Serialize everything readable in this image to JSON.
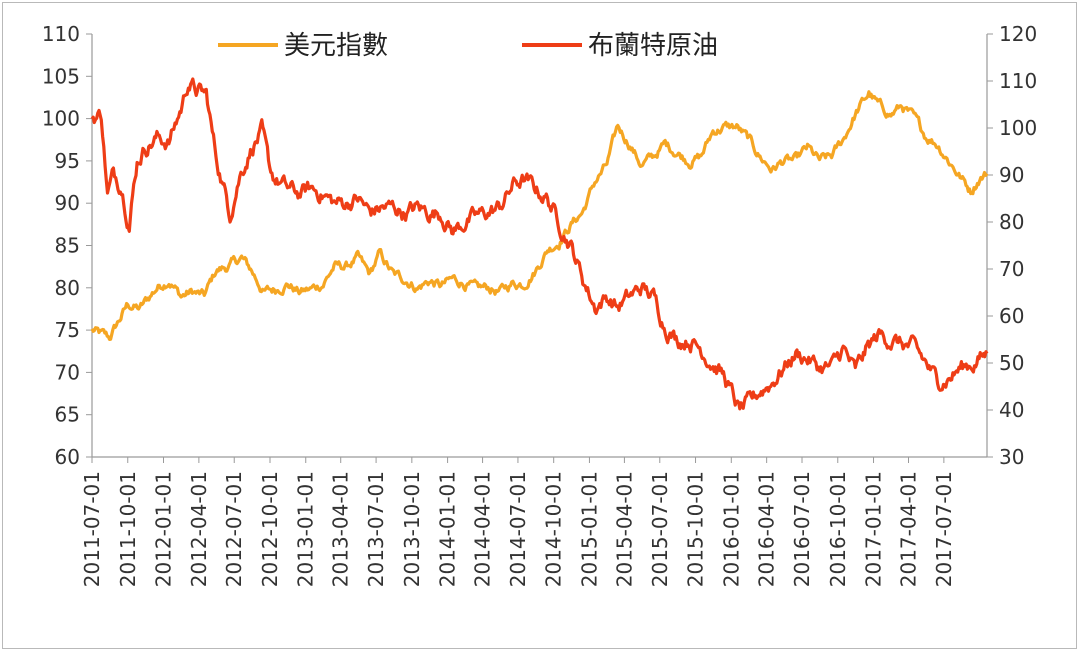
{
  "chart_data": {
    "type": "line",
    "title": "",
    "legend_position": "top",
    "grid": false,
    "x_tick_labels": [
      "2011-07-01",
      "2011-10-01",
      "2012-01-01",
      "2012-04-01",
      "2012-07-01",
      "2012-10-01",
      "2013-01-01",
      "2013-04-01",
      "2013-07-01",
      "2013-10-01",
      "2014-01-01",
      "2014-04-01",
      "2014-07-01",
      "2014-10-01",
      "2015-01-01",
      "2015-04-01",
      "2015-07-01",
      "2015-10-01",
      "2016-01-01",
      "2016-04-01",
      "2016-07-01",
      "2016-10-01",
      "2017-01-01",
      "2017-04-01",
      "2017-07-01"
    ],
    "x_range": [
      "2011-07-01",
      "2017-10-20"
    ],
    "y_left": {
      "min": 60,
      "max": 110,
      "step": 5,
      "ticks": [
        "60",
        "65",
        "70",
        "75",
        "80",
        "85",
        "90",
        "95",
        "100",
        "105",
        "110"
      ]
    },
    "y_right": {
      "min": 30,
      "max": 120,
      "step": 10,
      "ticks": [
        "30",
        "40",
        "50",
        "60",
        "70",
        "80",
        "90",
        "100",
        "110",
        "120"
      ]
    },
    "series": [
      {
        "name": "美元指數",
        "axis": "left",
        "color": "#f5a623",
        "points": [
          [
            "2011-07-01",
            75
          ],
          [
            "2011-08-15",
            74
          ],
          [
            "2011-10-01",
            78
          ],
          [
            "2011-11-01",
            77.5
          ],
          [
            "2011-12-15",
            80
          ],
          [
            "2012-01-15",
            81
          ],
          [
            "2012-02-15",
            79
          ],
          [
            "2012-03-15",
            79.5
          ],
          [
            "2012-04-15",
            79
          ],
          [
            "2012-05-15",
            82
          ],
          [
            "2012-06-15",
            82.5
          ],
          [
            "2012-07-20",
            83.5
          ],
          [
            "2012-08-15",
            82
          ],
          [
            "2012-09-15",
            79.5
          ],
          [
            "2012-10-15",
            79.8
          ],
          [
            "2012-11-15",
            80.5
          ],
          [
            "2012-12-15",
            79.5
          ],
          [
            "2013-01-15",
            79.8
          ],
          [
            "2013-02-15",
            80.5
          ],
          [
            "2013-03-15",
            82.5
          ],
          [
            "2013-04-15",
            82.5
          ],
          [
            "2013-05-15",
            83.5
          ],
          [
            "2013-06-15",
            81.5
          ],
          [
            "2013-07-10",
            84
          ],
          [
            "2013-08-15",
            81.5
          ],
          [
            "2013-09-15",
            81
          ],
          [
            "2013-10-15",
            80
          ],
          [
            "2013-11-15",
            80.8
          ],
          [
            "2013-12-15",
            80.2
          ],
          [
            "2014-01-15",
            81
          ],
          [
            "2014-02-15",
            80.5
          ],
          [
            "2014-03-15",
            79.8
          ],
          [
            "2014-04-15",
            80
          ],
          [
            "2014-05-15",
            79.5
          ],
          [
            "2014-06-15",
            80.5
          ],
          [
            "2014-07-15",
            80.5
          ],
          [
            "2014-08-15",
            82
          ],
          [
            "2014-09-15",
            84.5
          ],
          [
            "2014-10-15",
            85.5
          ],
          [
            "2014-11-15",
            87.5
          ],
          [
            "2014-12-15",
            89
          ],
          [
            "2015-01-15",
            92.5
          ],
          [
            "2015-02-15",
            94.5
          ],
          [
            "2015-03-15",
            99
          ],
          [
            "2015-04-15",
            97
          ],
          [
            "2015-05-15",
            94.5
          ],
          [
            "2015-06-15",
            95.5
          ],
          [
            "2015-07-15",
            97
          ],
          [
            "2015-08-15",
            96
          ],
          [
            "2015-09-15",
            95
          ],
          [
            "2015-10-15",
            95.5
          ],
          [
            "2015-11-15",
            98.5
          ],
          [
            "2015-12-15",
            99
          ],
          [
            "2016-01-15",
            99
          ],
          [
            "2016-02-15",
            97.5
          ],
          [
            "2016-03-15",
            95.5
          ],
          [
            "2016-04-15",
            94
          ],
          [
            "2016-05-15",
            95
          ],
          [
            "2016-06-15",
            95
          ],
          [
            "2016-07-15",
            96.5
          ],
          [
            "2016-08-15",
            95
          ],
          [
            "2016-09-15",
            95.5
          ],
          [
            "2016-10-15",
            97.5
          ],
          [
            "2016-11-15",
            100.5
          ],
          [
            "2016-12-20",
            103
          ],
          [
            "2017-01-15",
            101.5
          ],
          [
            "2017-02-15",
            100.5
          ],
          [
            "2017-03-15",
            101.5
          ],
          [
            "2017-04-15",
            100
          ],
          [
            "2017-05-15",
            98
          ],
          [
            "2017-06-15",
            97
          ],
          [
            "2017-07-15",
            95
          ],
          [
            "2017-08-15",
            93
          ],
          [
            "2017-09-08",
            91.5
          ],
          [
            "2017-10-01",
            93
          ],
          [
            "2017-10-20",
            93.5
          ]
        ]
      },
      {
        "name": "布蘭特原油",
        "axis": "right",
        "color": "#ee3d16",
        "points": [
          [
            "2011-07-01",
            102
          ],
          [
            "2011-07-25",
            103
          ],
          [
            "2011-08-10",
            86
          ],
          [
            "2011-08-25",
            90
          ],
          [
            "2011-09-15",
            88
          ],
          [
            "2011-10-05",
            80
          ],
          [
            "2011-10-25",
            93
          ],
          [
            "2011-11-15",
            96
          ],
          [
            "2011-12-15",
            98
          ],
          [
            "2012-01-15",
            97
          ],
          [
            "2012-02-15",
            104
          ],
          [
            "2012-03-05",
            110
          ],
          [
            "2012-03-25",
            108
          ],
          [
            "2012-04-20",
            107
          ],
          [
            "2012-05-15",
            94
          ],
          [
            "2012-06-20",
            82
          ],
          [
            "2012-07-15",
            90
          ],
          [
            "2012-08-15",
            96
          ],
          [
            "2012-09-10",
            99
          ],
          [
            "2012-09-30",
            91
          ],
          [
            "2012-10-15",
            89
          ],
          [
            "2012-11-15",
            87
          ],
          [
            "2012-12-15",
            86
          ],
          [
            "2013-01-15",
            87
          ],
          [
            "2013-02-15",
            86
          ],
          [
            "2013-03-15",
            84
          ],
          [
            "2013-04-15",
            84
          ],
          [
            "2013-05-15",
            85
          ],
          [
            "2013-06-15",
            82
          ],
          [
            "2013-07-15",
            83
          ],
          [
            "2013-08-15",
            83
          ],
          [
            "2013-09-15",
            82
          ],
          [
            "2013-10-15",
            83
          ],
          [
            "2013-11-15",
            82
          ],
          [
            "2013-12-15",
            82
          ],
          [
            "2014-01-15",
            78
          ],
          [
            "2014-02-15",
            80
          ],
          [
            "2014-03-15",
            81
          ],
          [
            "2014-04-15",
            82
          ],
          [
            "2014-05-15",
            83
          ],
          [
            "2014-06-20",
            88
          ],
          [
            "2014-07-15",
            89
          ],
          [
            "2014-08-15",
            87
          ],
          [
            "2014-09-15",
            85
          ],
          [
            "2014-10-15",
            80
          ],
          [
            "2014-11-15",
            75
          ],
          [
            "2014-12-15",
            68
          ],
          [
            "2015-01-15",
            62
          ],
          [
            "2015-02-15",
            64
          ],
          [
            "2015-03-15",
            62
          ],
          [
            "2015-04-15",
            64
          ],
          [
            "2015-05-15",
            66
          ],
          [
            "2015-06-15",
            64
          ],
          [
            "2015-07-15",
            58
          ],
          [
            "2015-08-15",
            55
          ],
          [
            "2015-09-15",
            55
          ],
          [
            "2015-10-15",
            53
          ],
          [
            "2015-11-15",
            50
          ],
          [
            "2015-12-15",
            47
          ],
          [
            "2016-01-20",
            40
          ],
          [
            "2016-02-15",
            41
          ],
          [
            "2016-03-15",
            44
          ],
          [
            "2016-04-15",
            46
          ],
          [
            "2016-05-15",
            49
          ],
          [
            "2016-06-15",
            52
          ],
          [
            "2016-07-15",
            51
          ],
          [
            "2016-08-15",
            49
          ],
          [
            "2016-09-15",
            49
          ],
          [
            "2016-10-15",
            53
          ],
          [
            "2016-11-15",
            48
          ],
          [
            "2016-12-15",
            53
          ],
          [
            "2017-01-15",
            56
          ],
          [
            "2017-02-15",
            55
          ],
          [
            "2017-03-15",
            54
          ],
          [
            "2017-04-15",
            53
          ],
          [
            "2017-05-15",
            50
          ],
          [
            "2017-06-15",
            46
          ],
          [
            "2017-07-15",
            47
          ],
          [
            "2017-08-15",
            49
          ],
          [
            "2017-09-15",
            50
          ],
          [
            "2017-10-20",
            52
          ]
        ]
      }
    ]
  }
}
